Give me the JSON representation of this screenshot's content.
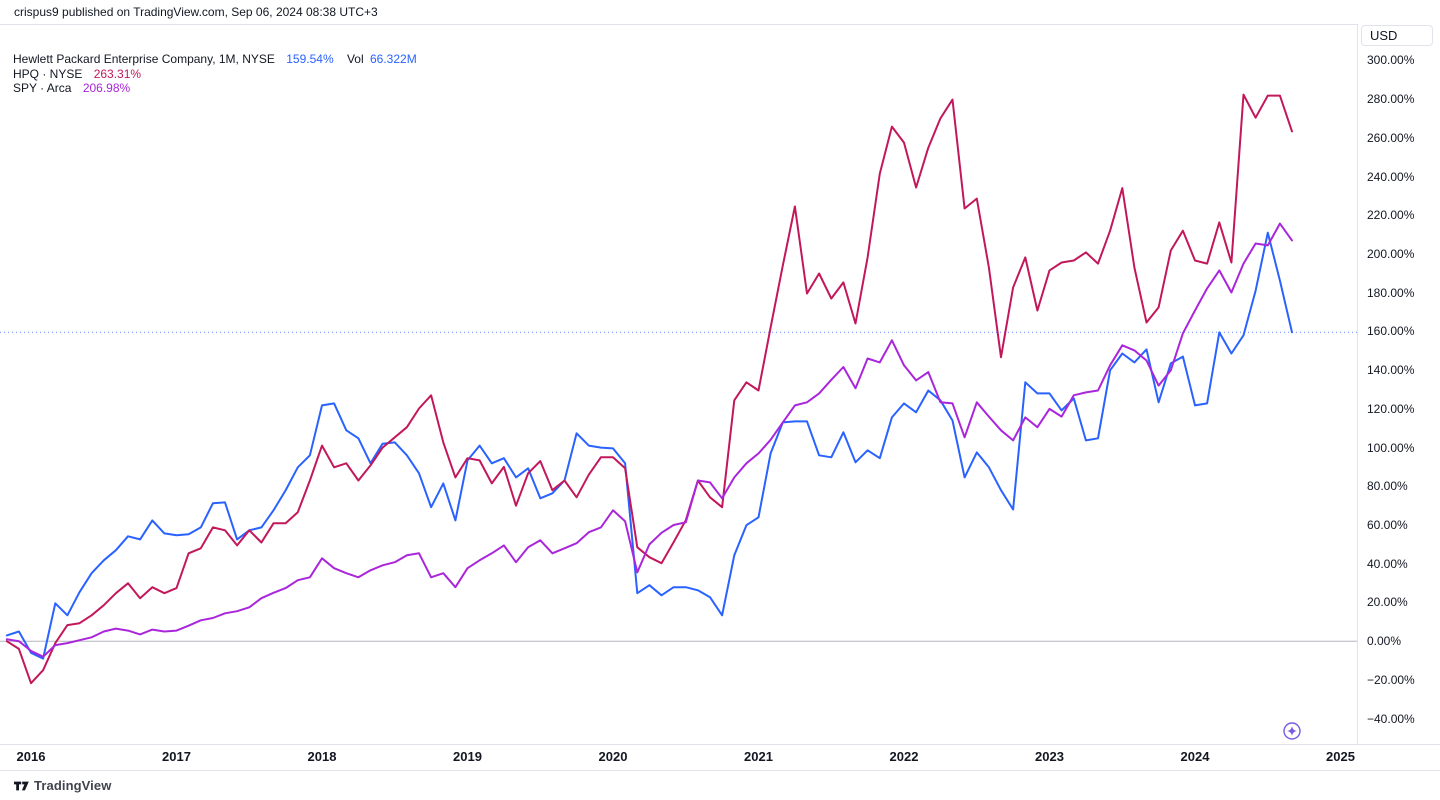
{
  "header": {
    "published_line": "crispus9 published on TradingView.com, Sep 06, 2024 08:38 UTC+3"
  },
  "legend": {
    "main": {
      "title": "Hewlett Packard Enterprise Company, 1M, NYSE",
      "change": "159.54%",
      "vol_label": "Vol",
      "vol_value": "66.322M"
    },
    "compares": [
      {
        "symbol": "HPQ · NYSE",
        "change": "263.31%"
      },
      {
        "symbol": "SPY · Arca",
        "change": "206.98%"
      }
    ]
  },
  "price_axis": {
    "currency_label": "USD",
    "tick_values": [
      300,
      280,
      260,
      240,
      220,
      200,
      180,
      160,
      140,
      120,
      100,
      80,
      60,
      40,
      20,
      0,
      -20,
      -40
    ],
    "tick_labels": [
      "300.00%",
      "280.00%",
      "260.00%",
      "240.00%",
      "220.00%",
      "200.00%",
      "180.00%",
      "160.00%",
      "140.00%",
      "120.00%",
      "100.00%",
      "80.00%",
      "60.00%",
      "40.00%",
      "20.00%",
      "0.00%",
      "−20.00%",
      "−40.00%"
    ]
  },
  "time_axis": {
    "ticks": [
      {
        "label": "2016",
        "year": 2016
      },
      {
        "label": "2017",
        "year": 2017
      },
      {
        "label": "2018",
        "year": 2018
      },
      {
        "label": "2019",
        "year": 2019
      },
      {
        "label": "2020",
        "year": 2020
      },
      {
        "label": "2021",
        "year": 2021
      },
      {
        "label": "2022",
        "year": 2022
      },
      {
        "label": "2023",
        "year": 2023
      },
      {
        "label": "2024",
        "year": 2024
      },
      {
        "label": "2025",
        "year": 2025
      }
    ]
  },
  "chart_data": {
    "type": "line",
    "title": "Hewlett Packard Enterprise Company vs HPQ and SPY, cumulative % change, 1M bars",
    "x_unit": "month",
    "x_start": {
      "year": 2015,
      "month": 11
    },
    "x_end": {
      "year": 2024,
      "month": 9
    },
    "y_unit": "percent",
    "ylim": [
      -55,
      310
    ],
    "grid": false,
    "baseline_value": 0,
    "current_value_line": 159.54,
    "legend_position": "top-left",
    "series": [
      {
        "name": "Hewlett Packard Enterprise Company (main, 1M, NYSE)",
        "color": "#2962FF",
        "last_value": 159.54,
        "values": [
          3,
          5,
          -6,
          -9,
          19.6,
          13.4,
          25.3,
          35.1,
          41.8,
          47,
          54.2,
          52.6,
          62.4,
          55.7,
          54.7,
          55.2,
          58.8,
          71.2,
          71.7,
          52.6,
          57.3,
          58.8,
          67.6,
          77.9,
          89.8,
          96,
          121.8,
          122.8,
          108.9,
          104.8,
          91.9,
          102,
          102.7,
          96,
          86.7,
          69.2,
          81.5,
          62.4,
          93.4,
          101,
          91.9,
          94.5,
          84.6,
          89.3,
          73.8,
          76.4,
          83,
          107.4,
          101,
          100,
          99.6,
          91.9,
          24.8,
          28.9,
          23.7,
          27.9,
          27.9,
          26.3,
          22.7,
          13.4,
          44.4,
          59.9,
          64,
          97,
          113,
          113.5,
          113.5,
          96,
          95,
          107.9,
          92.4,
          98.6,
          94.5,
          115.6,
          122.8,
          118.2,
          129.5,
          124.4,
          114,
          84.6,
          97.5,
          89.8,
          78,
          68,
          133.7,
          128,
          128,
          119.2,
          125.4,
          103.7,
          104.8,
          139.9,
          148.6,
          144,
          150.7,
          123.4,
          143.5,
          147,
          121.8,
          122.8,
          159.5,
          148.6,
          158,
          181,
          211,
          186.3,
          159.54
        ]
      },
      {
        "name": "HPQ · NYSE (compare)",
        "color": "#C2185B",
        "last_value": 263.31,
        "values": [
          0,
          -4,
          -21.7,
          -15,
          -1,
          8.3,
          9.3,
          13.4,
          18.6,
          24.8,
          29.9,
          22.2,
          27.9,
          24.8,
          27.4,
          45.4,
          48,
          58.8,
          57.3,
          49.5,
          57.3,
          51,
          60.9,
          60.9,
          66.6,
          83,
          101,
          89.8,
          91.9,
          83,
          90.8,
          100,
          105.3,
          110.5,
          120.2,
          127,
          102.7,
          84.6,
          94.5,
          93.4,
          81.5,
          90,
          70,
          86.7,
          93,
          78,
          83,
          74.3,
          86,
          95,
          95,
          89.3,
          48.5,
          43.4,
          40.3,
          51.1,
          62.5,
          83,
          74.3,
          69.2,
          124.4,
          133.7,
          129.5,
          162,
          194,
          224.5,
          179.6,
          189.9,
          177,
          185.3,
          164.1,
          198.2,
          241.5,
          265.8,
          257.5,
          234.3,
          254.9,
          270,
          279.7,
          223.5,
          228.6,
          193,
          146.7,
          182.7,
          198.2,
          170.8,
          191.5,
          195.6,
          196.6,
          200.8,
          195,
          212,
          234,
          193,
          164.6,
          172.4,
          201.8,
          212,
          196.6,
          195,
          216.3,
          195.6,
          282.3,
          270.4,
          281.8,
          281.8,
          263.31
        ]
      },
      {
        "name": "SPY · Arca (compare)",
        "color": "#AA26DB",
        "last_value": 206.98,
        "values": [
          1,
          0,
          -5,
          -8,
          -2,
          -1,
          0.5,
          2,
          5,
          6.5,
          5.5,
          3.5,
          6,
          5,
          5.5,
          8,
          10.8,
          12,
          14.4,
          15.5,
          17.5,
          22.2,
          25,
          27.4,
          31.5,
          33,
          42.8,
          37.7,
          35.1,
          33,
          36.6,
          39.2,
          40.8,
          44.4,
          45.4,
          33,
          35.1,
          27.9,
          37.7,
          41.8,
          45.4,
          49.5,
          40.8,
          48.5,
          52.1,
          45.4,
          48,
          50.6,
          56.3,
          58.8,
          67.6,
          62,
          35.6,
          50,
          56,
          60,
          61.4,
          83,
          82,
          73.8,
          84.6,
          91.9,
          97,
          104,
          113,
          121.8,
          123.4,
          128,
          135,
          141.6,
          130.6,
          146,
          144,
          155.4,
          142.5,
          134.7,
          139,
          123.4,
          122.8,
          105.3,
          123.4,
          116,
          108.9,
          103.7,
          115.6,
          110.5,
          120,
          116,
          127,
          128.5,
          129.5,
          142.5,
          152.8,
          150.2,
          145,
          132,
          139.9,
          159,
          170.8,
          182.2,
          191.5,
          180.1,
          195,
          205.4,
          204.4,
          215.7,
          206.98
        ]
      }
    ]
  },
  "marker": {
    "type": "sparkle-event",
    "color": "#7A5CE0"
  },
  "footer": {
    "brand": "TradingView"
  },
  "colors": {
    "accent_blue": "#2962FF",
    "hpq_crimson": "#C2185B",
    "spy_magenta": "#AA26DB",
    "text_dark": "#131722",
    "border_light": "#E0E3EB",
    "zero_line": "#B2B5BE"
  }
}
